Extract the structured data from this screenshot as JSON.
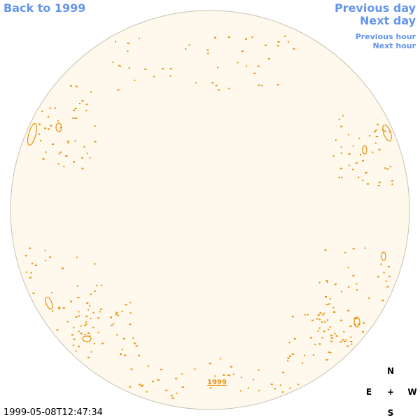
{
  "nav": {
    "back": "Back to 1999",
    "previous_day": "Previous day",
    "next_day": "Next day",
    "previous_hour": "Previous hour",
    "next_hour": "Next hour"
  },
  "disk_label": "1999",
  "timestamp": "1999-05-08T12:47:34",
  "compass": {
    "north": "N",
    "east": "E",
    "center": "+",
    "west": "W",
    "south": "S"
  }
}
